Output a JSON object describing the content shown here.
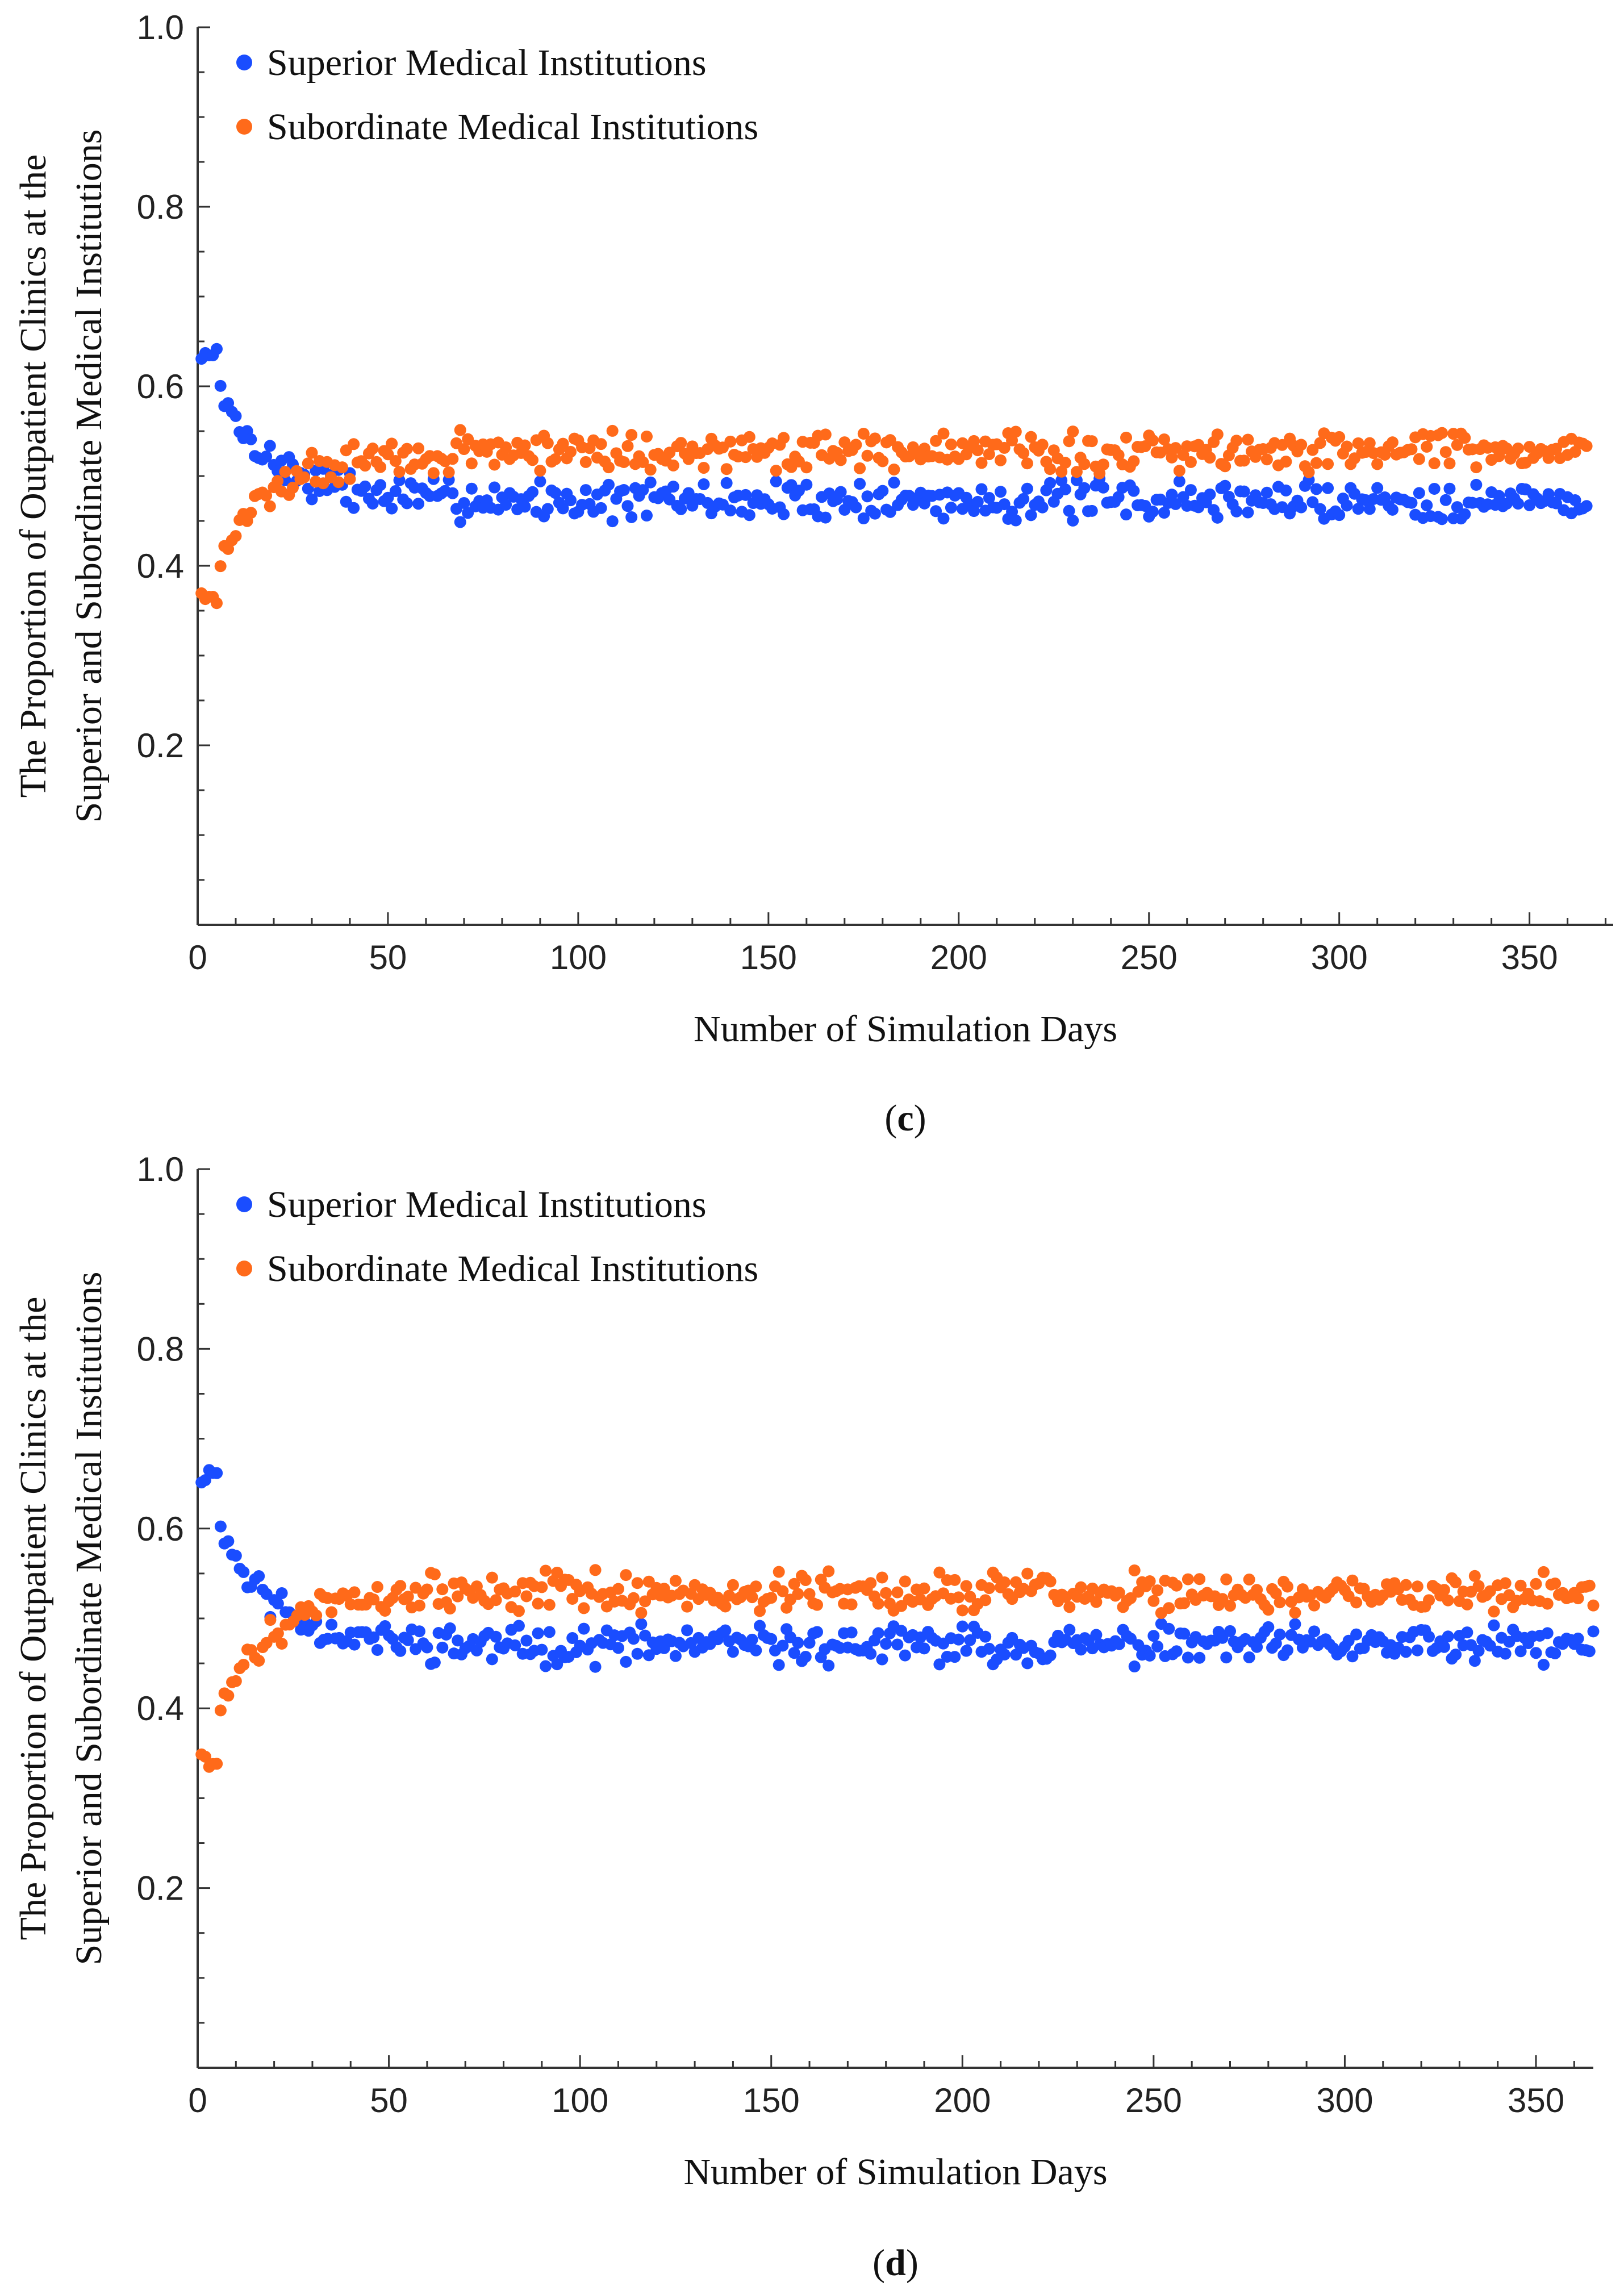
{
  "colors": {
    "superior": "#1a4dff",
    "subordinate": "#ff6a1a",
    "axis": "#333333"
  },
  "chart_data": [
    {
      "type": "scatter",
      "panel": "c",
      "caption": {
        "open": "(",
        "letter": "c",
        "close": ")"
      },
      "title": "",
      "xlabel": "Number of Simulation Days",
      "ylabel_line1": "The Proportion of Outpatient Clinics at the",
      "ylabel_line2": "Superior and Subordinate Medical Institutions",
      "xlim": [
        0,
        372
      ],
      "ylim": [
        0,
        1.0
      ],
      "xticks": [
        0,
        50,
        100,
        150,
        200,
        250,
        300,
        350
      ],
      "xtick_labels": [
        "0",
        "50",
        "100",
        "150",
        "200",
        "250",
        "300",
        "350"
      ],
      "yticks": [
        0.2,
        0.4,
        0.6,
        0.8,
        1.0
      ],
      "ytick_labels": [
        "0.2",
        "0.4",
        "0.6",
        "0.8",
        "1.0"
      ],
      "legend_position": "top-left",
      "model": {
        "days": 365,
        "superior_start": 0.63,
        "subordinate_start": 0.37,
        "steady_superior": 0.473,
        "steady_subordinate": 0.527,
        "convergence_tau": 15,
        "noise_amplitude": 0.015,
        "seed": 7
      },
      "series": [
        {
          "name": "Superior Medical Institutions",
          "color_key": "superior"
        },
        {
          "name": "Subordinate Medical Institutions",
          "color_key": "subordinate"
        }
      ]
    },
    {
      "type": "scatter",
      "panel": "d",
      "caption": {
        "open": "(",
        "letter": "d",
        "close": ")"
      },
      "title": "",
      "xlabel": "Number of Simulation Days",
      "ylabel_line1": "The Proportion of Outpatient Clinics at the",
      "ylabel_line2": "Superior and Subordinate Medical Institutions",
      "xlim": [
        0,
        365
      ],
      "ylim": [
        0,
        1.0
      ],
      "xticks": [
        0,
        50,
        100,
        150,
        200,
        250,
        300,
        350
      ],
      "xtick_labels": [
        "0",
        "50",
        "100",
        "150",
        "200",
        "250",
        "300",
        "350"
      ],
      "yticks": [
        0.2,
        0.4,
        0.6,
        0.8,
        1.0
      ],
      "ytick_labels": [
        "0.2",
        "0.4",
        "0.6",
        "0.8",
        "1.0"
      ],
      "legend_position": "top-left",
      "model": {
        "days": 365,
        "superior_start": 0.655,
        "subordinate_start": 0.345,
        "steady_superior": 0.47,
        "steady_subordinate": 0.53,
        "convergence_tau": 14,
        "noise_amplitude": 0.014,
        "seed": 11
      },
      "series": [
        {
          "name": "Superior Medical Institutions",
          "color_key": "superior"
        },
        {
          "name": "Subordinate Medical Institutions",
          "color_key": "subordinate"
        }
      ]
    }
  ]
}
